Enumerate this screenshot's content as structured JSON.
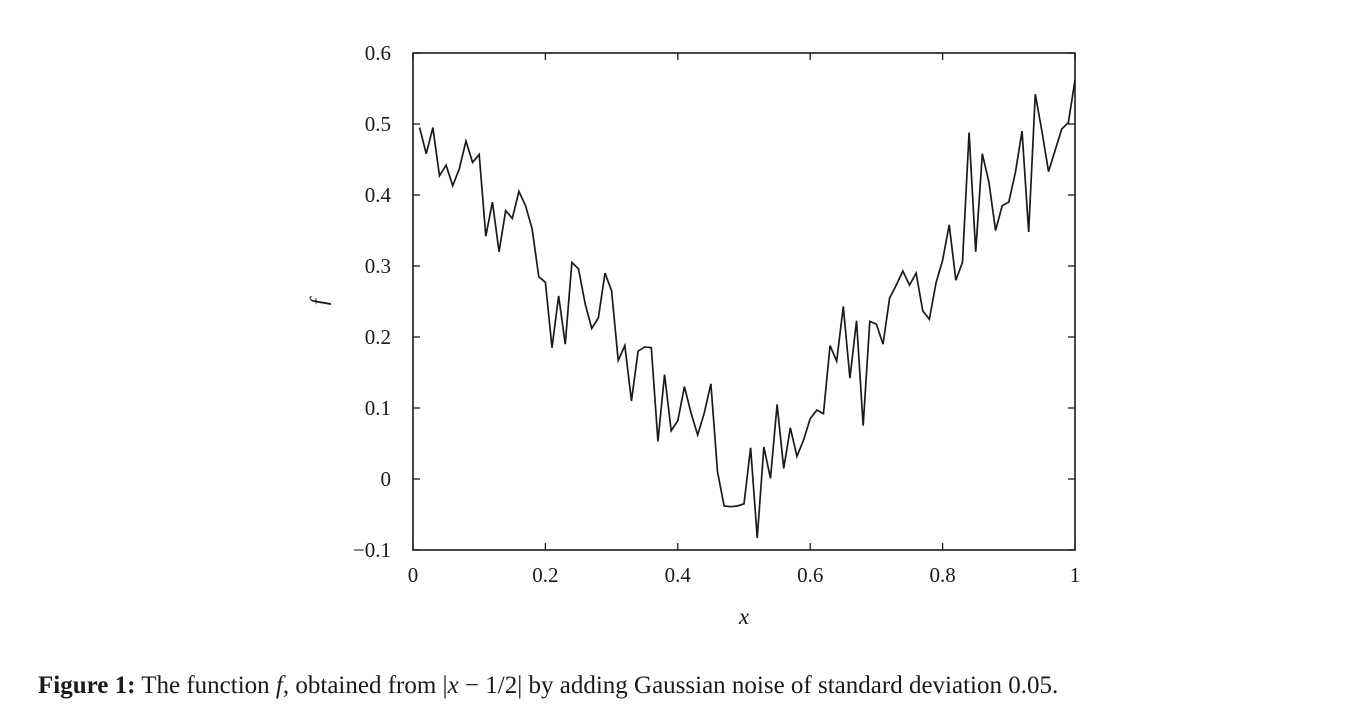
{
  "chart_data": {
    "type": "line",
    "title": "",
    "xlabel": "x",
    "ylabel": "f",
    "xlim": [
      0,
      1
    ],
    "ylim": [
      -0.1,
      0.6
    ],
    "grid": false,
    "legend": "none",
    "x_ticks": [
      0,
      0.2,
      0.4,
      0.6,
      0.8,
      1
    ],
    "x_tick_labels": [
      "0",
      "0.2",
      "0.4",
      "0.6",
      "0.8",
      "1"
    ],
    "y_ticks": [
      -0.1,
      0,
      0.1,
      0.2,
      0.3,
      0.4,
      0.5,
      0.6
    ],
    "y_tick_labels": [
      "−0.1",
      "0",
      "0.1",
      "0.2",
      "0.3",
      "0.4",
      "0.5",
      "0.6"
    ],
    "line_color": "#1a1a1a",
    "series": [
      {
        "x": [
          0.01,
          0.02,
          0.03,
          0.04,
          0.05,
          0.06,
          0.07,
          0.08,
          0.09,
          0.1,
          0.11,
          0.12,
          0.13,
          0.14,
          0.15,
          0.16,
          0.17,
          0.18,
          0.19,
          0.2,
          0.21,
          0.22,
          0.23,
          0.24,
          0.25,
          0.26,
          0.27,
          0.28,
          0.29,
          0.3,
          0.31,
          0.32,
          0.33,
          0.34,
          0.35,
          0.36,
          0.37,
          0.38,
          0.39,
          0.4,
          0.41,
          0.42,
          0.43,
          0.44,
          0.45,
          0.46,
          0.47,
          0.48,
          0.49,
          0.5,
          0.51,
          0.52,
          0.53,
          0.54,
          0.55,
          0.56,
          0.57,
          0.58,
          0.59,
          0.6,
          0.61,
          0.62,
          0.63,
          0.64,
          0.65,
          0.66,
          0.67,
          0.68,
          0.69,
          0.7,
          0.71,
          0.72,
          0.73,
          0.74,
          0.75,
          0.76,
          0.77,
          0.78,
          0.79,
          0.8,
          0.81,
          0.82,
          0.83,
          0.84,
          0.85,
          0.86,
          0.87,
          0.88,
          0.89,
          0.9,
          0.91,
          0.92,
          0.93,
          0.94,
          0.95,
          0.96,
          0.97,
          0.98,
          0.99,
          1.0
        ],
        "y": [
          0.495,
          0.458,
          0.495,
          0.427,
          0.442,
          0.413,
          0.437,
          0.476,
          0.446,
          0.457,
          0.342,
          0.39,
          0.32,
          0.378,
          0.367,
          0.405,
          0.385,
          0.352,
          0.285,
          0.277,
          0.185,
          0.258,
          0.19,
          0.305,
          0.296,
          0.247,
          0.212,
          0.227,
          0.29,
          0.265,
          0.167,
          0.188,
          0.11,
          0.18,
          0.186,
          0.185,
          0.053,
          0.147,
          0.068,
          0.082,
          0.13,
          0.093,
          0.062,
          0.093,
          0.134,
          0.01,
          -0.038,
          -0.039,
          -0.038,
          -0.035,
          0.044,
          -0.083,
          0.045,
          0.001,
          0.105,
          0.015,
          0.072,
          0.032,
          0.055,
          0.085,
          0.097,
          0.092,
          0.188,
          0.166,
          0.243,
          0.142,
          0.223,
          0.075,
          0.222,
          0.218,
          0.19,
          0.255,
          0.273,
          0.293,
          0.273,
          0.29,
          0.237,
          0.225,
          0.276,
          0.308,
          0.358,
          0.28,
          0.305,
          0.488,
          0.32,
          0.458,
          0.418,
          0.35,
          0.385,
          0.39,
          0.432,
          0.49,
          0.348,
          0.542,
          0.49,
          0.433,
          0.463,
          0.493,
          0.502,
          0.562
        ]
      }
    ]
  },
  "caption": {
    "label": "Figure 1:",
    "text_part1": " The function ",
    "symbol_f": "f",
    "text_part2": ", obtained from |",
    "symbol_x": "x",
    "text_part3": " − 1/2| by adding Gaussian noise of standard deviation 0.05."
  }
}
